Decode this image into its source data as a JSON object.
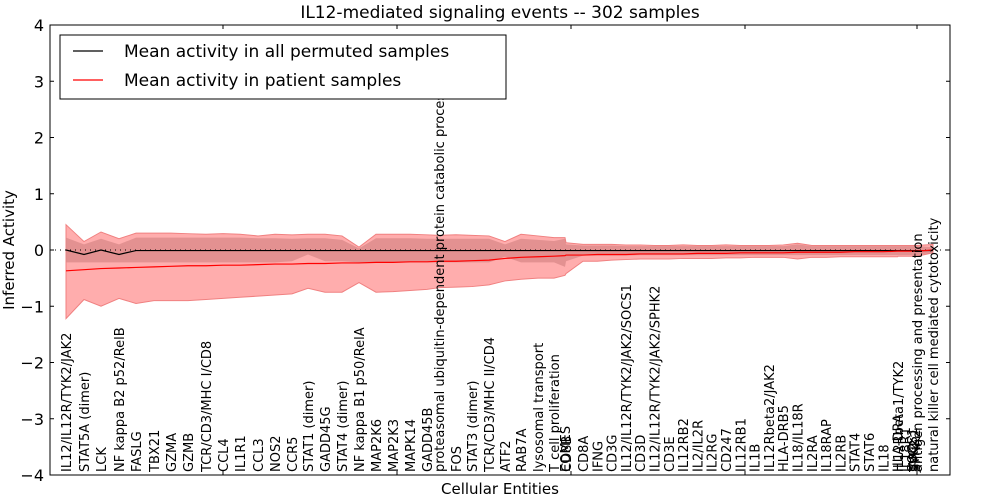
{
  "chart_data": {
    "type": "line",
    "title": "IL12-mediated signaling events -- 302 samples",
    "xlabel": "Cellular Entities",
    "ylabel": "Inferred Activity",
    "ylim": [
      -4,
      4
    ],
    "yticks": [
      -4,
      -3,
      -2,
      -1,
      0,
      1,
      2,
      3,
      4
    ],
    "ytick_labels": [
      "−4",
      "−3",
      "−2",
      "−1",
      "0",
      "1",
      "2",
      "3",
      "4"
    ],
    "xlim": [
      -1,
      50
    ],
    "xticks": [
      0,
      10,
      20,
      30,
      40,
      50
    ],
    "grid": false,
    "legend_position": "top-left",
    "legend": [
      {
        "label": "Mean activity in all permuted samples",
        "color": "#000000"
      },
      {
        "label": "Mean activity in patient samples",
        "color": "#ff0000"
      }
    ],
    "colors": {
      "permuted_line": "#000000",
      "patient_line": "#ff0000",
      "outer_band": "#ff9999",
      "inner_band": "#d98888",
      "zero_line": "#000000"
    },
    "categories": [
      "IL12/IL12R/TYK2/JAK2",
      "STAT5A (dimer)",
      "LCK",
      "NF kappa B2 p52/RelB",
      "FASLG",
      "TBX21",
      "GZMA",
      "GZMB",
      "TCR/CD3/MHC I/CD8",
      "CCL4",
      "IL1R1",
      "CCL3",
      "NOS2",
      "CCR5",
      "STAT1 (dimer)",
      "GADD45G",
      "STAT4 (dimer)",
      "NF kappa B1 p50/RelA",
      "MAP2K6",
      "MAP2K3",
      "MAPK14",
      "GADD45B",
      "proteasomal ubiquitin-dependent protein catabolic process",
      "FOS",
      "STAT3 (dimer)",
      "TCR/CD3/MHC II/CD4",
      "ATF2",
      "RAB7A",
      "lysosomal transport",
      "T cell proliferation",
      "EOMES",
      "CD8B",
      "CD8A",
      "IFNG",
      "CD3G",
      "IL12/IL12R/TYK2/JAK2/SOCS1",
      "CD3D",
      "IL12/IL12R/TYK2/JAK2/SPHK2",
      "CD3E",
      "IL12RB2",
      "IL2/IL2R",
      "IL2RG",
      "CD247",
      "IL12RB1",
      "IL1B",
      "IL12Rbeta2/JAK2",
      "HLA-DRB5",
      "IL18/IL18R",
      "IL2RA",
      "IL18RAP",
      "IL2RB",
      "STAT4",
      "STAT6",
      "IL18",
      "HLA-DRA",
      "IL12Rbeta1/TYK2",
      "IL18R1",
      "SOCS1",
      "JAK2",
      "TYK2",
      "SPHK2",
      "antigen processing and presentation",
      "natural killer cell mediated cytotoxicity"
    ],
    "x": [
      0,
      1,
      2,
      3,
      4,
      5,
      6,
      7,
      8,
      9,
      10,
      11,
      12,
      13,
      14,
      15,
      16,
      17,
      18,
      19,
      20,
      21,
      22,
      23,
      24,
      25,
      26,
      27,
      28,
      29,
      29.9,
      30.0,
      31,
      32,
      33,
      34,
      35,
      36,
      37,
      38,
      39,
      40,
      41,
      42,
      43,
      44,
      45,
      46,
      47,
      48,
      49,
      50,
      51,
      52,
      53,
      54,
      48.9,
      49.0,
      49.05,
      49.1,
      49.15,
      49.2,
      50.0
    ],
    "series": [
      {
        "name": "Mean activity in all permuted samples",
        "values": [
          0.0,
          -0.08,
          0.0,
          -0.08,
          -0.01,
          -0.01,
          -0.01,
          -0.01,
          -0.01,
          -0.01,
          -0.01,
          -0.01,
          -0.01,
          -0.01,
          -0.01,
          -0.01,
          -0.01,
          -0.01,
          -0.01,
          -0.01,
          -0.01,
          -0.01,
          -0.01,
          -0.01,
          -0.01,
          -0.01,
          -0.01,
          -0.01,
          -0.01,
          -0.01,
          -0.01,
          -0.01,
          -0.01,
          -0.01,
          -0.01,
          -0.01,
          -0.01,
          -0.01,
          -0.01,
          -0.01,
          -0.01,
          -0.01,
          -0.01,
          -0.01,
          -0.01,
          -0.01,
          -0.01,
          -0.01,
          -0.01,
          -0.01,
          -0.01,
          -0.01,
          -0.01,
          -0.01,
          -0.01,
          -0.01,
          -0.01,
          -0.01,
          -0.01,
          -0.01,
          -0.01,
          -0.01,
          -0.01
        ]
      },
      {
        "name": "Mean activity in patient samples",
        "values": [
          -0.37,
          -0.35,
          -0.33,
          -0.32,
          -0.31,
          -0.3,
          -0.29,
          -0.28,
          -0.28,
          -0.27,
          -0.27,
          -0.26,
          -0.25,
          -0.25,
          -0.24,
          -0.24,
          -0.23,
          -0.23,
          -0.22,
          -0.22,
          -0.21,
          -0.21,
          -0.2,
          -0.2,
          -0.19,
          -0.18,
          -0.15,
          -0.13,
          -0.12,
          -0.11,
          -0.1,
          -0.09,
          -0.09,
          -0.08,
          -0.08,
          -0.08,
          -0.07,
          -0.07,
          -0.07,
          -0.07,
          -0.06,
          -0.06,
          -0.06,
          -0.05,
          -0.05,
          -0.05,
          -0.05,
          -0.04,
          -0.04,
          -0.04,
          -0.04,
          -0.03,
          -0.03,
          -0.03,
          -0.02,
          -0.02,
          -0.02,
          -0.02,
          -0.02,
          -0.02,
          -0.02,
          -0.02,
          0.0
        ]
      }
    ],
    "bands": {
      "outer_upper": [
        0.45,
        0.15,
        0.32,
        0.2,
        0.3,
        0.3,
        0.3,
        0.29,
        0.28,
        0.29,
        0.28,
        0.25,
        0.28,
        0.27,
        0.28,
        0.28,
        0.25,
        0.05,
        0.28,
        0.28,
        0.28,
        0.27,
        0.26,
        0.27,
        0.26,
        0.25,
        0.15,
        0.28,
        0.25,
        0.22,
        0.22,
        0.13,
        0.1,
        0.1,
        0.1,
        0.09,
        0.09,
        0.08,
        0.08,
        0.09,
        0.08,
        0.08,
        0.09,
        0.08,
        0.08,
        0.08,
        0.09,
        0.12,
        0.08,
        0.08,
        0.08,
        0.08,
        0.08,
        0.08,
        0.08,
        0.08,
        0.08,
        0.08,
        0.08,
        0.08,
        0.08,
        0.08,
        0.1
      ],
      "outer_lower": [
        -1.22,
        -0.88,
        -1.0,
        -0.86,
        -0.95,
        -0.9,
        -0.9,
        -0.9,
        -0.88,
        -0.86,
        -0.84,
        -0.82,
        -0.8,
        -0.78,
        -0.68,
        -0.75,
        -0.75,
        -0.58,
        -0.75,
        -0.74,
        -0.72,
        -0.7,
        -0.67,
        -0.66,
        -0.65,
        -0.62,
        -0.55,
        -0.52,
        -0.5,
        -0.5,
        -0.45,
        -0.42,
        -0.2,
        -0.2,
        -0.18,
        -0.17,
        -0.16,
        -0.16,
        -0.16,
        -0.15,
        -0.15,
        -0.15,
        -0.14,
        -0.14,
        -0.13,
        -0.13,
        -0.13,
        -0.16,
        -0.13,
        -0.13,
        -0.12,
        -0.12,
        -0.12,
        -0.12,
        -0.12,
        -0.11,
        -0.11,
        -0.11,
        -0.11,
        -0.11,
        -0.11,
        -0.11,
        -0.05
      ],
      "inner_upper": [
        0.22,
        0.1,
        0.2,
        0.1,
        0.22,
        0.22,
        0.22,
        0.22,
        0.22,
        0.22,
        0.22,
        0.21,
        0.21,
        0.2,
        0.21,
        0.21,
        0.18,
        0.03,
        0.21,
        0.21,
        0.21,
        0.2,
        0.2,
        0.2,
        0.2,
        0.2,
        0.1,
        0.2,
        0.18,
        0.16,
        0.2,
        0.1,
        0.08,
        0.08,
        0.08,
        0.07,
        0.07,
        0.07,
        0.07,
        0.07,
        0.07,
        0.07,
        0.07,
        0.07,
        0.07,
        0.07,
        0.07,
        0.1,
        0.07,
        0.07,
        0.07,
        0.07,
        0.07,
        0.07,
        0.07,
        0.07,
        0.07,
        0.07,
        0.07,
        0.07,
        0.07,
        0.07,
        0.05
      ],
      "inner_lower": [
        -0.22,
        -0.22,
        -0.22,
        -0.22,
        -0.22,
        -0.22,
        -0.22,
        -0.22,
        -0.22,
        -0.22,
        -0.22,
        -0.22,
        -0.22,
        -0.2,
        -0.08,
        -0.2,
        -0.2,
        -0.22,
        -0.22,
        -0.22,
        -0.22,
        -0.22,
        -0.22,
        -0.22,
        -0.22,
        -0.22,
        -0.12,
        -0.22,
        -0.22,
        -0.22,
        -0.3,
        -0.2,
        -0.1,
        -0.1,
        -0.1,
        -0.1,
        -0.09,
        -0.09,
        -0.09,
        -0.09,
        -0.09,
        -0.09,
        -0.09,
        -0.09,
        -0.09,
        -0.09,
        -0.09,
        -0.09,
        -0.09,
        -0.09,
        -0.09,
        -0.09,
        -0.09,
        -0.09,
        -0.09,
        -0.09,
        -0.09,
        -0.09,
        -0.09,
        -0.09,
        -0.09,
        -0.09,
        -0.05
      ]
    }
  }
}
